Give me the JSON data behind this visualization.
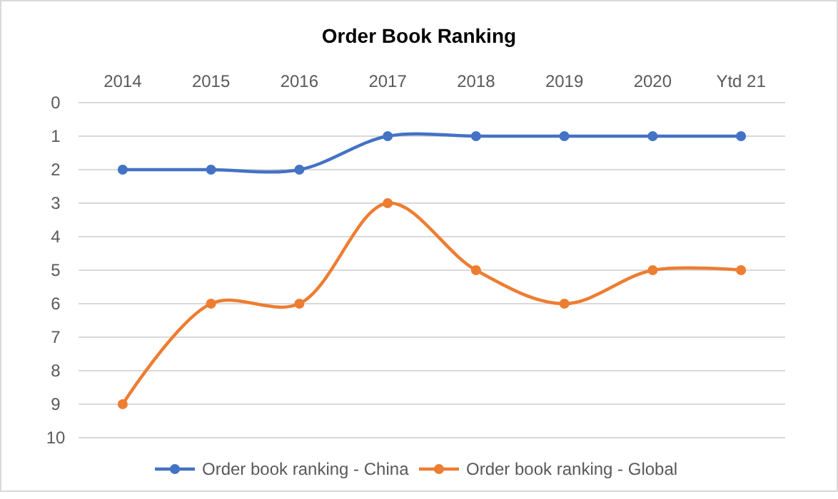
{
  "chart_data": {
    "type": "line",
    "title": "Order Book Ranking",
    "categories": [
      "2014",
      "2015",
      "2016",
      "2017",
      "2018",
      "2019",
      "2020",
      "Ytd 21"
    ],
    "series": [
      {
        "name": "Order book ranking - China",
        "color": "#4472c4",
        "values": [
          2,
          2,
          2,
          1,
          1,
          1,
          1,
          1
        ]
      },
      {
        "name": "Order book ranking - Global",
        "color": "#ed7d31",
        "values": [
          9,
          6,
          6,
          3,
          5,
          6,
          5,
          5
        ]
      }
    ],
    "ylim": [
      10,
      0
    ],
    "yticks": [
      0,
      1,
      2,
      3,
      4,
      5,
      6,
      7,
      8,
      9,
      10
    ],
    "grid": "y",
    "legend": "bottom",
    "marker": "circle",
    "line_style": "solid"
  }
}
